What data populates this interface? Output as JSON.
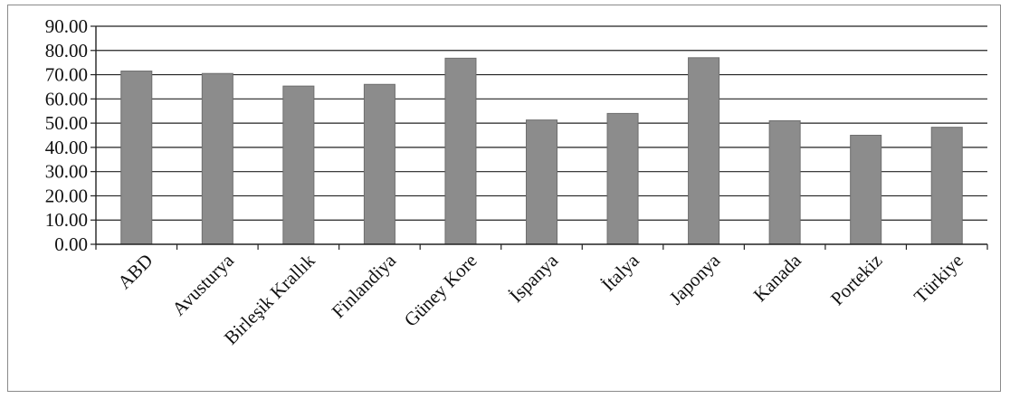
{
  "chart_data": {
    "type": "bar",
    "title": "",
    "xlabel": "",
    "ylabel": "",
    "categories": [
      "ABD",
      "Avusturya",
      "Birleşik Krallık",
      "Finlandiya",
      "Güney Kore",
      "İspanya",
      "İtalya",
      "Japonya",
      "Kanada",
      "Portekiz",
      "Türkiye"
    ],
    "values": [
      71.5,
      70.5,
      65.3,
      66.0,
      76.8,
      51.3,
      54.0,
      77.0,
      51.0,
      45.0,
      48.3
    ],
    "ylim": [
      0,
      90
    ],
    "yticks": [
      "0.00",
      "10.00",
      "20.00",
      "30.00",
      "40.00",
      "50.00",
      "60.00",
      "70.00",
      "80.00",
      "90.00"
    ],
    "grid": true,
    "legend": "none",
    "bar_color": "#8c8c8c",
    "bar_edge_color": "#6e6e6e"
  }
}
